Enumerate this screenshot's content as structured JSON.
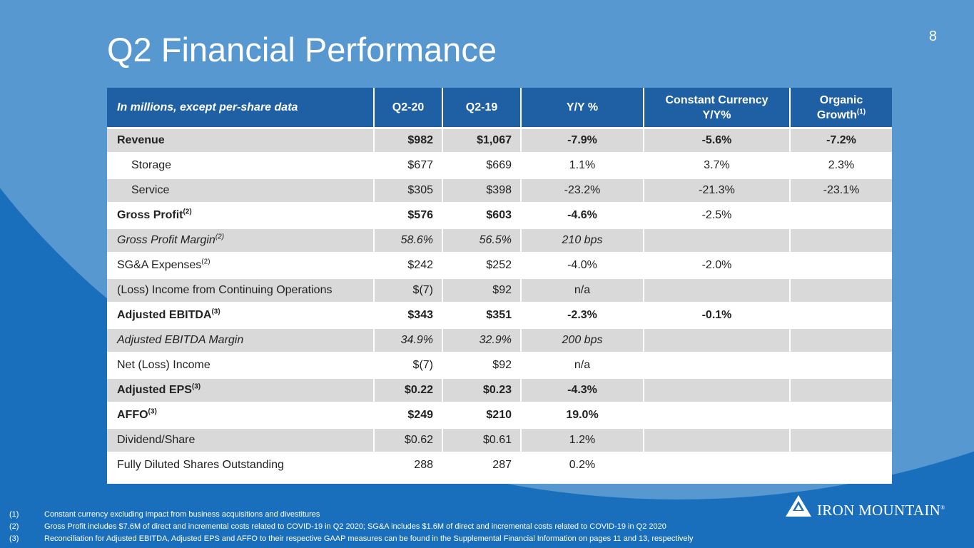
{
  "page_number": "8",
  "title": "Q2 Financial Performance",
  "table": {
    "headers": {
      "label": "In millions, except per-share data",
      "q220": "Q2-20",
      "q219": "Q2-19",
      "yy": "Y/Y %",
      "cc_line1": "Constant Currency",
      "cc_line2": "Y/Y%",
      "org_line1": "Organic",
      "org_line2": "Growth",
      "org_sup": "(1)"
    },
    "rows": [
      {
        "label": "Revenue",
        "sup": "",
        "q220": "$982",
        "q219": "$1,067",
        "yy": "-7.9%",
        "cc": "-5.6%",
        "org": "-7.2%"
      },
      {
        "label": "Storage",
        "sup": "",
        "q220": "$677",
        "q219": "$669",
        "yy": "1.1%",
        "cc": "3.7%",
        "org": "2.3%"
      },
      {
        "label": "Service",
        "sup": "",
        "q220": "$305",
        "q219": "$398",
        "yy": "-23.2%",
        "cc": "-21.3%",
        "org": "-23.1%"
      },
      {
        "label": "Gross Profit",
        "sup": "(2)",
        "q220": "$576",
        "q219": "$603",
        "yy": "-4.6%",
        "cc": "-2.5%",
        "org": ""
      },
      {
        "label": "Gross Profit Margin",
        "sup": "(2)",
        "q220": "58.6%",
        "q219": "56.5%",
        "yy": "210 bps",
        "cc": "",
        "org": ""
      },
      {
        "label": "SG&A Expenses",
        "sup": "(2)",
        "q220": "$242",
        "q219": "$252",
        "yy": "-4.0%",
        "cc": "-2.0%",
        "org": ""
      },
      {
        "label": "(Loss) Income from Continuing Operations",
        "sup": "",
        "q220": "$(7)",
        "q219": "$92",
        "yy": "n/a",
        "cc": "",
        "org": ""
      },
      {
        "label": "Adjusted EBITDA",
        "sup": "(3)",
        "q220": "$343",
        "q219": "$351",
        "yy": "-2.3%",
        "cc": "-0.1%",
        "org": ""
      },
      {
        "label": "Adjusted EBITDA Margin",
        "sup": "",
        "q220": "34.9%",
        "q219": "32.9%",
        "yy": "200 bps",
        "cc": "",
        "org": ""
      },
      {
        "label": "Net (Loss) Income",
        "sup": "",
        "q220": "$(7)",
        "q219": "$92",
        "yy": "n/a",
        "cc": "",
        "org": ""
      },
      {
        "label": "Adjusted EPS",
        "sup": "(3)",
        "q220": "$0.22",
        "q219": "$0.23",
        "yy": "-4.3%",
        "cc": "",
        "org": ""
      },
      {
        "label": "AFFO",
        "sup": "(3)",
        "q220": "$249",
        "q219": "$210",
        "yy": "19.0%",
        "cc": "",
        "org": ""
      },
      {
        "label": "Dividend/Share",
        "sup": "",
        "q220": "$0.62",
        "q219": "$0.61",
        "yy": "1.2%",
        "cc": "",
        "org": ""
      },
      {
        "label": "Fully Diluted Shares Outstanding",
        "sup": "",
        "q220": "288",
        "q219": "287",
        "yy": "0.2%",
        "cc": "",
        "org": ""
      }
    ]
  },
  "footnotes": [
    {
      "num": "(1)",
      "text": "Constant currency excluding impact from business acquisitions and divestitures"
    },
    {
      "num": "(2)",
      "text": "Gross Profit includes $7.6M of direct and incremental costs related to COVID-19 in Q2 2020; SG&A includes $1.6M of direct and incremental costs related to COVID-19 in Q2 2020"
    },
    {
      "num": "(3)",
      "text": "Reconciliation for Adjusted EBITDA, Adjusted EPS  and AFFO to their respective GAAP measures can be found in the Supplemental Financial Information on pages 11 and 13, respectively"
    }
  ],
  "logo": {
    "text": "IRON MOUNTAIN",
    "mark": "®",
    "icon": "mountain-icon"
  }
}
